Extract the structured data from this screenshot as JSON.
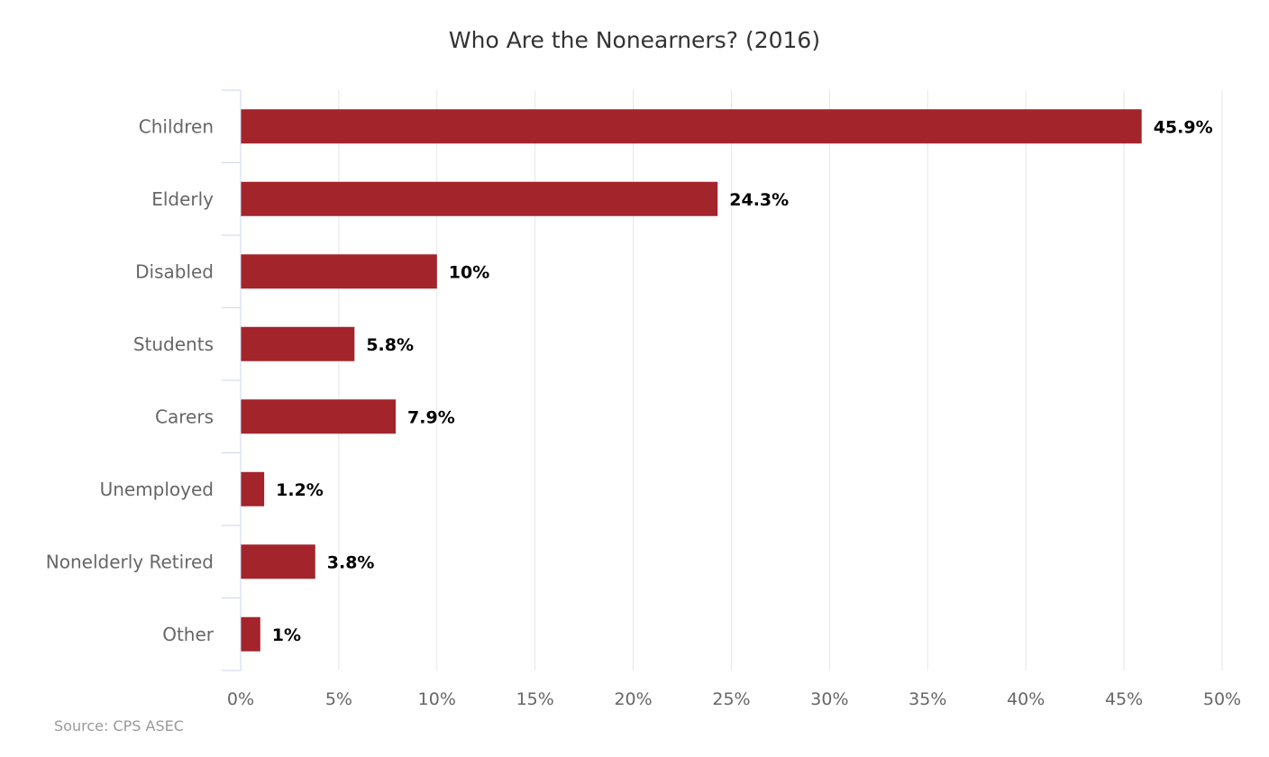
{
  "chart_data": {
    "type": "bar",
    "orientation": "horizontal",
    "title": "Who Are the Nonearners? (2016)",
    "categories": [
      "Children",
      "Elderly",
      "Disabled",
      "Students",
      "Carers",
      "Unemployed",
      "Nonelderly Retired",
      "Other"
    ],
    "values": [
      45.9,
      24.3,
      10,
      5.8,
      7.9,
      1.2,
      3.8,
      1
    ],
    "data_labels": [
      "45.9%",
      "24.3%",
      "10%",
      "5.8%",
      "7.9%",
      "1.2%",
      "3.8%",
      "1%"
    ],
    "x_ticks": [
      "0%",
      "5%",
      "10%",
      "15%",
      "20%",
      "25%",
      "30%",
      "35%",
      "40%",
      "45%",
      "50%"
    ],
    "xlim": [
      0,
      50
    ],
    "grid": "vertical",
    "legend": "none",
    "bar_color": "#a3242b",
    "source": "Source: CPS ASEC"
  }
}
